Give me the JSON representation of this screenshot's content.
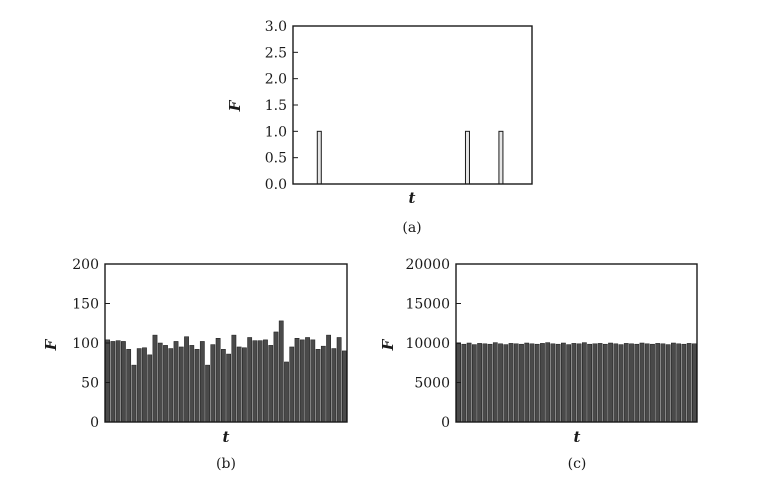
{
  "chart_data": [
    {
      "type": "bar",
      "caption": "(a)",
      "xlabel": "t",
      "ylabel": "F",
      "ylim": [
        0,
        3.0
      ],
      "yticks": [
        "0.0",
        "0.5",
        "1.0",
        "1.5",
        "2.0",
        "2.5",
        "3.0"
      ],
      "bar_count": 50,
      "values": [
        0,
        0,
        0,
        0,
        0,
        1,
        0,
        0,
        0,
        0,
        0,
        0,
        0,
        0,
        0,
        0,
        0,
        0,
        0,
        0,
        0,
        0,
        0,
        0,
        0,
        0,
        0,
        0,
        0,
        0,
        0,
        0,
        0,
        0,
        0,
        0,
        1,
        0,
        0,
        0,
        0,
        0,
        0,
        1,
        0,
        0,
        0,
        0,
        0,
        0
      ]
    },
    {
      "type": "bar",
      "caption": "(b)",
      "xlabel": "t",
      "ylabel": "F",
      "ylim": [
        0,
        200
      ],
      "yticks": [
        "0",
        "50",
        "100",
        "150",
        "200"
      ],
      "values": [
        104,
        102,
        103,
        102,
        92,
        72,
        93,
        94,
        85,
        110,
        100,
        97,
        93,
        102,
        95,
        108,
        97,
        92,
        102,
        72,
        98,
        106,
        92,
        86,
        110,
        95,
        94,
        107,
        103,
        103,
        104,
        97,
        114,
        128,
        76,
        95,
        106,
        104,
        107,
        104,
        92,
        96,
        110,
        93,
        107,
        90
      ]
    },
    {
      "type": "bar",
      "caption": "(c)",
      "xlabel": "t",
      "ylabel": "F",
      "ylim": [
        0,
        20000
      ],
      "yticks": [
        "0",
        "5000",
        "10000",
        "15000",
        "20000"
      ],
      "values": [
        9900,
        9850,
        10000,
        9800,
        9950,
        9900,
        9850,
        10050,
        9900,
        9800,
        9950,
        9900,
        9850,
        10000,
        9900,
        9850,
        9950,
        10050,
        9900,
        9850,
        10000,
        9800,
        9950,
        9900,
        10050,
        9850,
        9900,
        9950,
        9850,
        10000,
        9900,
        9800,
        9950,
        9900,
        9850,
        10000,
        9900,
        9850,
        9950,
        9900,
        9800,
        10000,
        9900,
        9850,
        9950,
        9900
      ]
    }
  ]
}
